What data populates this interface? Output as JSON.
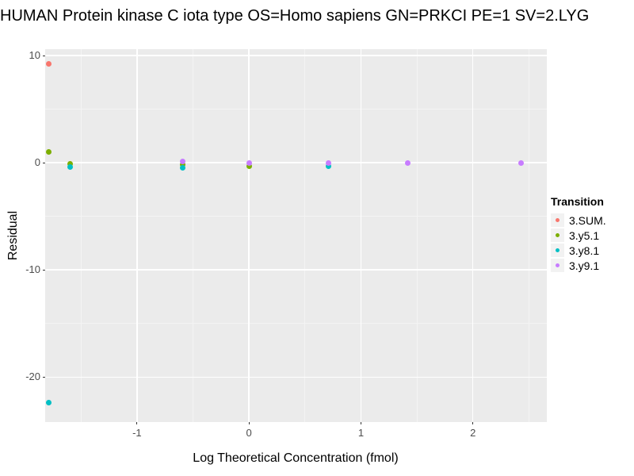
{
  "chart_data": {
    "type": "scatter",
    "title": "HUMAN Protein kinase C iota type OS=Homo sapiens GN=PRKCI PE=1 SV=2.LYG",
    "xlabel": "Log Theoretical Concentration (fmol)",
    "ylabel": "Residual",
    "xlim": [
      -1.82,
      2.66
    ],
    "ylim": [
      -24.2,
      10.6
    ],
    "x_major_ticks": [
      -1,
      0,
      1,
      2
    ],
    "x_minor_ticks": [
      -1.5,
      -0.5,
      0.5,
      1.5,
      2.5
    ],
    "y_major_ticks": [
      10,
      0,
      -10,
      -20
    ],
    "y_minor_ticks": [
      5,
      -5,
      -15
    ],
    "grid": true,
    "panel_bg": "#EBEBEB",
    "grid_major_color": "#FFFFFF",
    "grid_minor_color": "#F4F4F4",
    "legend_title": "Transition",
    "legend_position": "right",
    "series": [
      {
        "name": "3.SUM.",
        "color": "#F8766D",
        "points": [
          [
            -1.79,
            9.2
          ]
        ]
      },
      {
        "name": "3.y5.1",
        "color": "#7CAE00",
        "points": [
          [
            -1.79,
            1.0
          ],
          [
            -1.6,
            -0.1
          ],
          [
            -0.59,
            -0.2
          ],
          [
            0.0,
            -0.3
          ]
        ]
      },
      {
        "name": "3.y8.1",
        "color": "#00BFC4",
        "points": [
          [
            -1.79,
            -22.4
          ],
          [
            -1.6,
            -0.4
          ],
          [
            -0.59,
            -0.45
          ],
          [
            0.71,
            -0.3
          ]
        ]
      },
      {
        "name": "3.y9.1",
        "color": "#C77CFF",
        "points": [
          [
            -0.59,
            0.1
          ],
          [
            0.0,
            0.0
          ],
          [
            0.71,
            0.0
          ],
          [
            1.42,
            0.0
          ],
          [
            2.43,
            0.0
          ]
        ]
      }
    ]
  }
}
